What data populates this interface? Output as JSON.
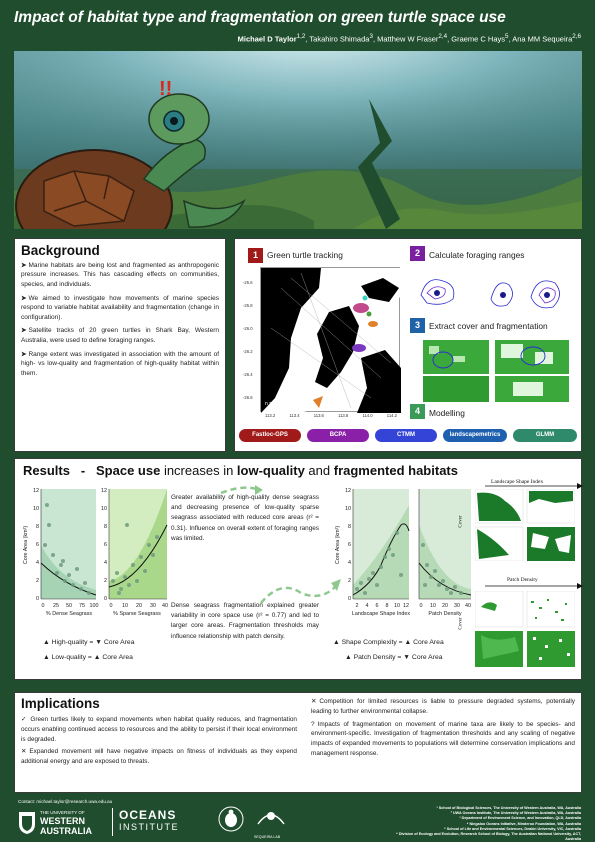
{
  "header": {
    "title": "Impact of habitat type and fragmentation on green turtle space use",
    "authors_lead": "Michael D Taylor",
    "authors_lead_sup": "1,2",
    "authors_rest": ", Takahiro Shimada",
    "authors_rest_sup": "3",
    "authors_3": ", Matthew W Fraser",
    "authors_3_sup": "2,4",
    "authors_4": ", Graeme C Hays",
    "authors_4_sup": "5",
    "authors_5": ", Ana MM Sequeira",
    "authors_5_sup": "2,6"
  },
  "hero": {
    "exclaim": "!!"
  },
  "background": {
    "title": "Background",
    "bullets": [
      "Marine habitats are being lost and fragmented as anthropogenic pressure increases. This has cascading effects on communities, species, and individuals.",
      "We aimed to investigate how movements of marine species respond to variable habitat availability and fragmentation (change in configuration).",
      "Satellite tracks of 20 green turtles in Shark Bay, Western Australia, were used to define foraging ranges.",
      "Range extent was investigated in association with the amount of high- vs low-quality and fragmentation of high-quality habitat within them."
    ]
  },
  "methods": {
    "steps": [
      {
        "num": "1",
        "label": "Green turtle tracking",
        "color": "#a01a1a"
      },
      {
        "num": "2",
        "label": "Calculate foraging ranges",
        "color": "#7a1fa0"
      },
      {
        "num": "3",
        "label": "Extract cover and fragmentation",
        "color": "#1f62a8"
      },
      {
        "num": "4",
        "label": "Modelling",
        "color": "#3a9a5a"
      }
    ],
    "map": {
      "n_label": "n = 20",
      "lat_ticks": [
        "-25.6",
        "-25.8",
        "-26.0",
        "-26.2",
        "-26.4",
        "-26.6"
      ],
      "lon_ticks": [
        "113.2",
        "113.4",
        "113.6",
        "113.8",
        "114.0",
        "114.2"
      ]
    },
    "pills": [
      {
        "label": "Fastloc-GPS",
        "color": "#a01a1a"
      },
      {
        "label": "BCPA",
        "color": "#8a1fa8"
      },
      {
        "label": "CTMM",
        "color": "#3344d6"
      },
      {
        "label": "landscapemetrics",
        "color": "#1f5fb0"
      },
      {
        "label": "GLMM",
        "color": "#2e8a6a"
      }
    ]
  },
  "results": {
    "title_a": "Results",
    "title_dash": "-",
    "title_b": "Space use",
    "title_c": " increases in ",
    "title_d": "low-quality",
    "title_e": " and ",
    "title_f": "fragmented habitats",
    "ylabel": "Core Area (km²)",
    "plots": [
      {
        "xlabel": "% Dense Seagrass",
        "xticks": [
          "0",
          "25",
          "50",
          "75",
          "100"
        ],
        "yticks": [
          "12",
          "10",
          "8",
          "6",
          "4",
          "2",
          "0"
        ]
      },
      {
        "xlabel": "% Sparse Seagrass",
        "xticks": [
          "0",
          "10",
          "20",
          "30",
          "40"
        ],
        "yticks": [
          "12",
          "10",
          "8",
          "6",
          "4",
          "2",
          "0"
        ]
      },
      {
        "xlabel": "Landscape Shape Index",
        "xticks": [
          "2",
          "4",
          "6",
          "8",
          "10",
          "12"
        ],
        "yticks": [
          "12",
          "10",
          "8",
          "6",
          "4",
          "2",
          "0"
        ]
      },
      {
        "xlabel": "Patch Density",
        "xticks": [
          "0",
          "10",
          "20",
          "30",
          "40"
        ],
        "yticks": [
          "12",
          "10",
          "8",
          "6",
          "4",
          "2",
          "0"
        ]
      }
    ],
    "text1": "Greater availability of high-quality dense seagrass and decreasing presence of low-quality sparse seagrass associated with reduced core areas (r² = 0.31). Influence on overall extent of foraging ranges was limited.",
    "text2": "Dense seagrass fragmentation explained greater variability in core space use (r² = 0.77) and led to larger core areas. Fragmentation thresholds may influence relationship with patch density.",
    "legend_left": [
      "▲ High-quality = ▼ Core Area",
      "▲ Low-quality = ▲ Core Area"
    ],
    "legend_right": [
      "▲ Shape Complexity = ▲ Core Area",
      "▲ Patch Density = ▼ Core Area"
    ],
    "lsi_title": "Landscape Shape Index",
    "pd_title": "Patch Density",
    "cover_label": "Cover"
  },
  "implications": {
    "title": "Implications",
    "left": [
      {
        "mark": "✓",
        "text": "Green turtles likely to expand movements when habitat quality reduces, and fragmentation occurs enabling continued access to resources and the ability to persist if their local environment is degraded."
      },
      {
        "mark": "✕",
        "text": "Expanded movement will have negative impacts on fitness of individuals as they expend additional energy and are exposed to threats."
      }
    ],
    "right": [
      {
        "mark": "✕",
        "text": "Competition for limited resources is liable to pressure degraded systems, potentially leading to further environmental collapse."
      },
      {
        "mark": "?",
        "text": "Impacts of fragmentation on movement of marine taxa are likely to be species- and environment-specific. Investigation of fragmentation thresholds and any scaling of negative impacts of expanded movements to populations will determine conservation implications and management response."
      }
    ]
  },
  "footer": {
    "contact": "Contact: michael.taylor@research.uwa.edu.au",
    "uni_line1": "THE UNIVERSITY OF",
    "uni_line2": "WESTERN",
    "uni_line3": "AUSTRALIA",
    "oceans1": "OCEANS",
    "oceans2": "INSTITUTE",
    "sequeira_lab": "SEQUEIRA LAB",
    "affiliations": [
      "¹ School of Biological Sciences, The University of Western Australia, WA, Australia",
      "² UWA Oceans Institute, The University of Western Australia, WA, Australia",
      "³ Department of Environment Science, and Innovation, QLD, Australia",
      "⁴ Ningaloo Oceans Initiative, Minderoo Foundation, WA, Australia",
      "⁵ School of Life and Environmental Sciences, Deakin University, VIC, Australia",
      "⁶ Division of Ecology and Evolution, Research School of Biology, The Australian National University, ACT, Australia"
    ]
  }
}
